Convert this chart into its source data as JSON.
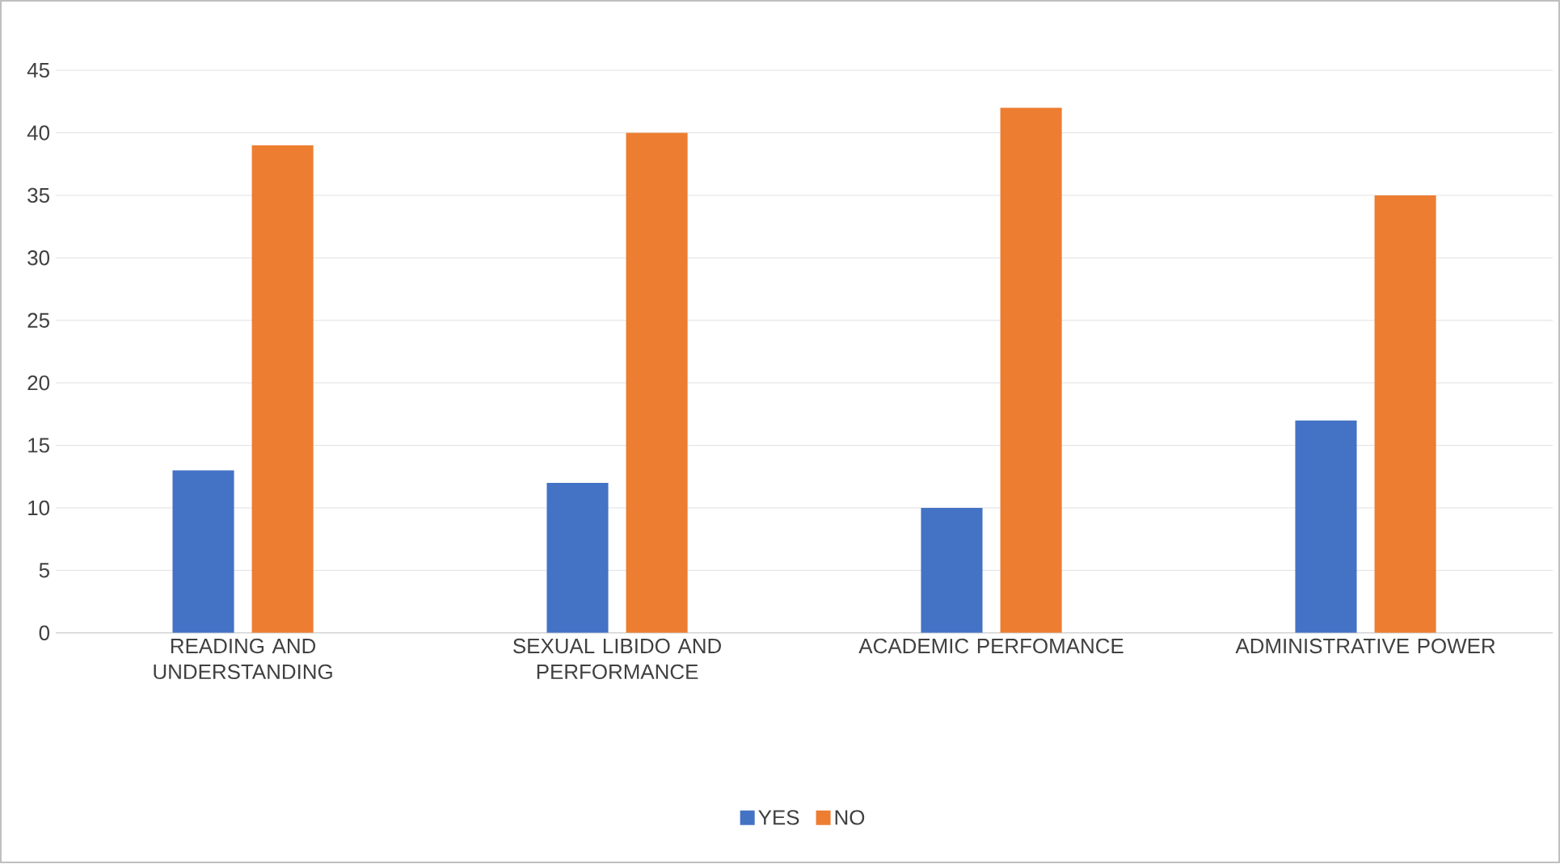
{
  "chart_data": {
    "type": "bar",
    "categories": [
      "READING AND UNDERSTANDING",
      "SEXUAL LIBIDO AND PERFORMANCE",
      "ACADEMIC PERFOMANCE",
      "ADMINISTRATIVE POWER"
    ],
    "series": [
      {
        "name": "YES",
        "color": "#4472c4",
        "values": [
          13,
          12,
          10,
          17
        ]
      },
      {
        "name": "NO",
        "color": "#ed7d31",
        "values": [
          39,
          40,
          42,
          35
        ]
      }
    ],
    "ylim": [
      0,
      45
    ],
    "yticks": [
      0,
      5,
      10,
      15,
      20,
      25,
      30,
      35,
      40,
      45
    ],
    "grid": "y",
    "legend": "bottom"
  }
}
